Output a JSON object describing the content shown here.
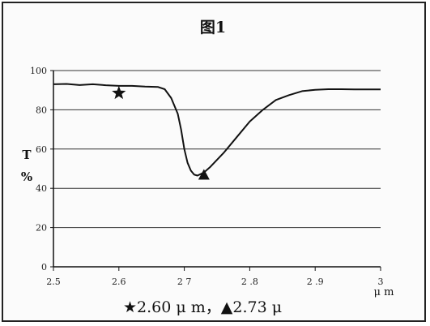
{
  "chart_data": {
    "type": "line",
    "title": "图1",
    "xlabel": "μ m",
    "ylabel_top": "T",
    "ylabel_bottom": "%",
    "xlim": [
      2.5,
      3.0
    ],
    "ylim": [
      0,
      100
    ],
    "x_ticks": [
      2.5,
      2.6,
      2.7,
      2.8,
      2.9,
      3.0
    ],
    "x_tick_labels": [
      "2.5",
      "2.6",
      "2 7",
      "2 .8",
      "2 .9",
      "3"
    ],
    "y_ticks": [
      0,
      20,
      40,
      60,
      80,
      100
    ],
    "y_tick_labels": [
      "0",
      "20",
      "40",
      "60",
      "80",
      "100"
    ],
    "grid": "horizontal",
    "series": [
      {
        "x": [
          2.5,
          2.52,
          2.54,
          2.56,
          2.58,
          2.6,
          2.62,
          2.64,
          2.66,
          2.67,
          2.68,
          2.69,
          2.695,
          2.7,
          2.705,
          2.71,
          2.715,
          2.72,
          2.73,
          2.74,
          2.76,
          2.78,
          2.8,
          2.82,
          2.84,
          2.86,
          2.88,
          2.9,
          2.92,
          2.94,
          2.96,
          2.98,
          3.0
        ],
        "y": [
          93,
          93.2,
          92.6,
          93,
          92.5,
          92.2,
          92.2,
          91.8,
          91.6,
          90.5,
          86,
          78,
          70,
          60,
          53,
          49,
          47,
          46.5,
          48,
          51,
          58,
          66,
          74,
          80,
          85,
          87.5,
          89.5,
          90.2,
          90.5,
          90.5,
          90.4,
          90.4,
          90.4
        ]
      }
    ],
    "markers": [
      {
        "symbol": "star",
        "x": 2.6,
        "y": 88.5
      },
      {
        "symbol": "triangle",
        "x": 2.73,
        "y": 46.5
      }
    ],
    "legend_text": "★2.60 μ m，▲2.73 μ"
  }
}
